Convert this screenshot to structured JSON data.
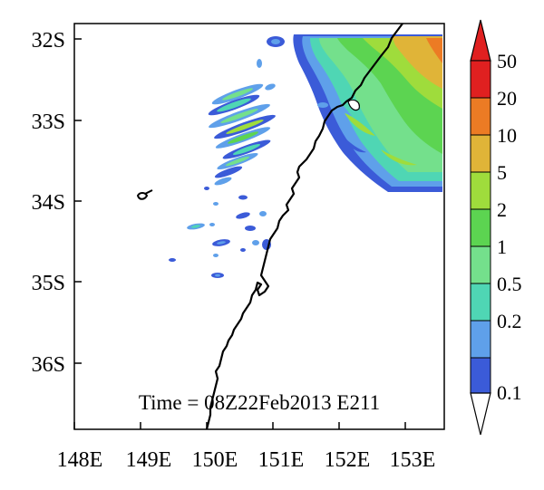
{
  "map": {
    "lat_labels": [
      "32S",
      "33S",
      "34S",
      "35S",
      "36S"
    ],
    "lon_labels": [
      "148E",
      "149E",
      "150E",
      "151E",
      "152E",
      "153E"
    ],
    "time_text": "Time = 08Z22Feb2013 E211"
  },
  "colorbar": {
    "labels": [
      "0.1",
      "0.2",
      "0.5",
      "1",
      "2",
      "5",
      "10",
      "20",
      "50"
    ],
    "colors": [
      "#3b5bd8",
      "#5fa0ea",
      "#4fd6b4",
      "#74e08c",
      "#5cd451",
      "#9fdc3c",
      "#e0b438",
      "#ec7b24",
      "#e02020"
    ],
    "extend_under_color": "#ffffff"
  }
}
